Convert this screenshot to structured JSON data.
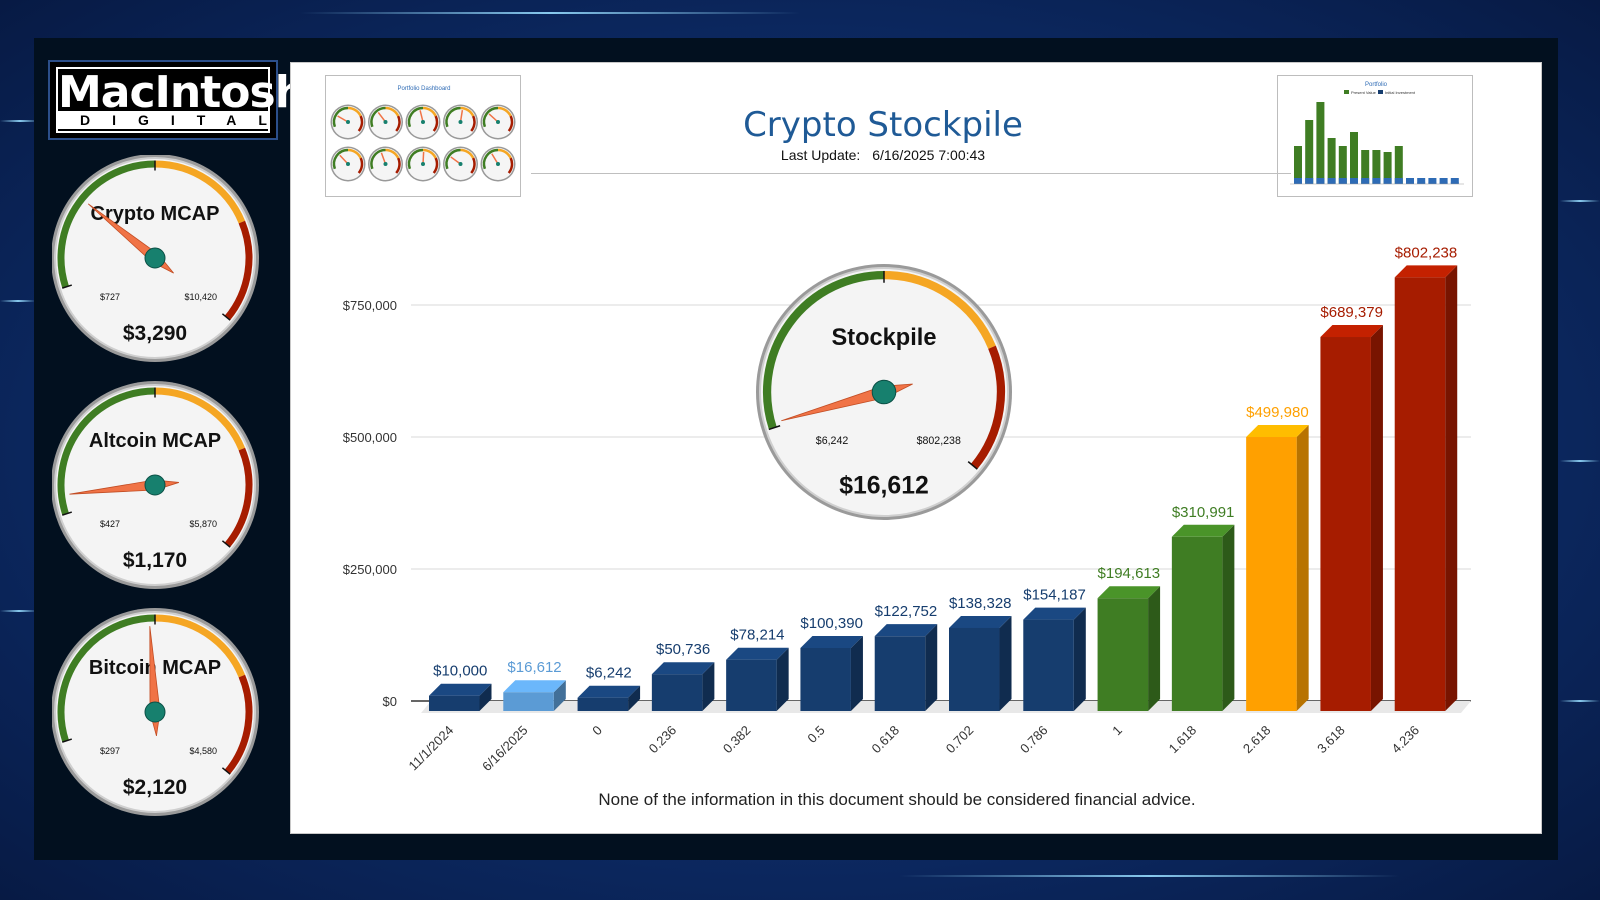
{
  "brand": {
    "name": "MacIntosh",
    "tagline": "DIGITAL"
  },
  "header": {
    "title": "Crypto Stockpile",
    "last_update_label": "Last Update:",
    "last_update_value": "6/16/2025 7:00:43"
  },
  "footer": {
    "disclaimer": "None of the information in this document should be considered financial advice."
  },
  "side_gauges": [
    {
      "label": "Crypto MCAP",
      "min": "$727",
      "max": "$10,420",
      "value": "$3,290",
      "needle_fraction": 0.24
    },
    {
      "label": "Altcoin MCAP",
      "min": "$427",
      "max": "$5,870",
      "value": "$1,170",
      "needle_fraction": 0.05
    },
    {
      "label": "Bitcoin MCAP",
      "min": "$297",
      "max": "$4,580",
      "value": "$2,120",
      "needle_fraction": 0.44
    }
  ],
  "center_gauge": {
    "label": "Stockpile",
    "min": "$6,242",
    "max": "$802,238",
    "value": "$16,612",
    "needle_fraction": 0.01
  },
  "thumbnails": {
    "left_title": "Portfolio Dashboard",
    "right_title": "Portfolio",
    "right_legend": [
      "Present Value",
      "Initial Investment"
    ]
  },
  "colors": {
    "navy": "#163d6e",
    "light_blue": "#5b9bd5",
    "green": "#3f7d23",
    "orange": "#ffa000",
    "red": "#a61c00",
    "title_blue": "#1f5a96",
    "gauge_green": "#3f7d23",
    "gauge_orange": "#f5a623",
    "gauge_red": "#a61c00",
    "needle": "#f07346",
    "hub": "#17806e"
  },
  "chart_data": {
    "type": "bar",
    "categories": [
      "11/1/2024",
      "6/16/2025",
      "0",
      "0.236",
      "0.382",
      "0.5",
      "0.618",
      "0.702",
      "0.786",
      "1",
      "1.618",
      "2.618",
      "3.618",
      "4.236"
    ],
    "values": [
      10000,
      16612,
      6242,
      50736,
      78214,
      100390,
      122752,
      138328,
      154187,
      194613,
      310991,
      499980,
      689379,
      802238
    ],
    "data_labels": [
      "$10,000",
      "$16,612",
      "$6,242",
      "$50,736",
      "$78,214",
      "$100,390",
      "$122,752",
      "$138,328",
      "$154,187",
      "$194,613",
      "$310,991",
      "$499,980",
      "$689,379",
      "$802,238"
    ],
    "bar_colors": [
      "navy",
      "light_blue",
      "navy",
      "navy",
      "navy",
      "navy",
      "navy",
      "navy",
      "navy",
      "green",
      "green",
      "orange",
      "red",
      "red"
    ],
    "y_ticks": [
      0,
      250000,
      500000,
      750000
    ],
    "y_tick_labels": [
      "$0",
      "$250,000",
      "$500,000",
      "$750,000"
    ],
    "ylim": [
      0,
      800000
    ],
    "grid": true,
    "legend": "none",
    "style": "3d-bar"
  }
}
